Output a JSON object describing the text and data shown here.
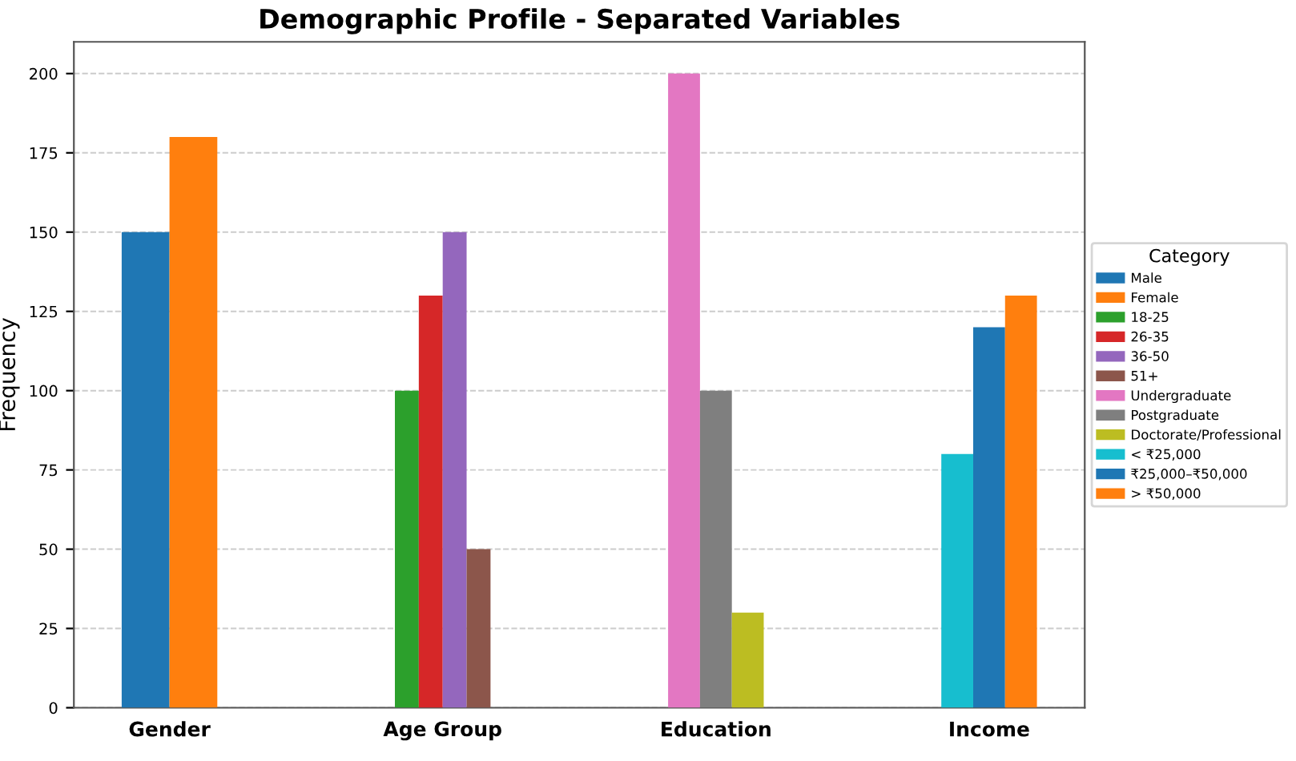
{
  "chart_data": {
    "type": "bar",
    "title": "Demographic Profile - Separated Variables",
    "ylabel": "Frequency",
    "legend_title": "Category",
    "categories": [
      "Gender",
      "Age Group",
      "Education",
      "Income"
    ],
    "series": [
      {
        "name": "Male",
        "color": "#1f77b4",
        "values": [
          150,
          null,
          null,
          null
        ]
      },
      {
        "name": "Female",
        "color": "#ff7f0e",
        "values": [
          180,
          null,
          null,
          null
        ]
      },
      {
        "name": "18-25",
        "color": "#2ca02c",
        "values": [
          null,
          100,
          null,
          null
        ]
      },
      {
        "name": "26-35",
        "color": "#d62728",
        "values": [
          null,
          130,
          null,
          null
        ]
      },
      {
        "name": "36-50",
        "color": "#9467bd",
        "values": [
          null,
          150,
          null,
          null
        ]
      },
      {
        "name": "51+",
        "color": "#8c564b",
        "values": [
          null,
          50,
          null,
          null
        ]
      },
      {
        "name": "Undergraduate",
        "color": "#e377c2",
        "values": [
          null,
          null,
          200,
          null
        ]
      },
      {
        "name": "Postgraduate",
        "color": "#7f7f7f",
        "values": [
          null,
          null,
          100,
          null
        ]
      },
      {
        "name": "Doctorate/Professional",
        "color": "#bcbd22",
        "values": [
          null,
          null,
          30,
          null
        ]
      },
      {
        "name": "< ₹25,000",
        "color": "#17becf",
        "values": [
          null,
          null,
          null,
          80
        ]
      },
      {
        "name": "₹25,000–₹50,000",
        "color": "#1f77b4",
        "values": [
          null,
          null,
          null,
          120
        ]
      },
      {
        "name": "> ₹50,000",
        "color": "#ff7f0e",
        "values": [
          null,
          null,
          null,
          130
        ]
      }
    ],
    "ylim": [
      0,
      210
    ],
    "yticks": [
      0,
      25,
      50,
      75,
      100,
      125,
      150,
      175,
      200
    ],
    "grid": "y",
    "legend": "right"
  }
}
